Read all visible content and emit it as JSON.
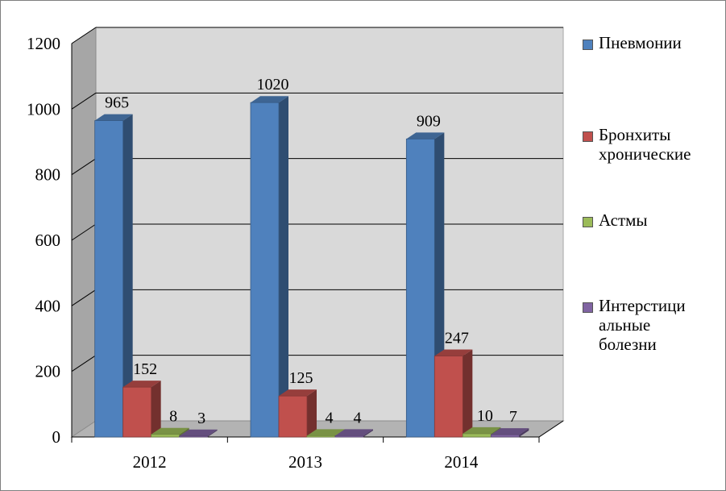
{
  "chart_data": {
    "type": "bar",
    "style": "3d-clustered-column",
    "categories": [
      "2012",
      "2013",
      "2014"
    ],
    "series": [
      {
        "name": "Пневмонии",
        "values": [
          965,
          1020,
          909
        ],
        "color": "#4f81bd"
      },
      {
        "name": "Бронхиты\nхронические",
        "values": [
          152,
          125,
          247
        ],
        "color": "#c0504d"
      },
      {
        "name": "Астмы",
        "values": [
          8,
          4,
          10
        ],
        "color": "#9bbb59"
      },
      {
        "name": "Интерстици\nальные\nболезни",
        "values": [
          3,
          4,
          7
        ],
        "color": "#8064a2"
      }
    ],
    "ylim": [
      0,
      1200
    ],
    "yticks": [
      "0",
      "200",
      "400",
      "600",
      "800",
      "1000",
      "1200"
    ],
    "grid": true,
    "legend": "right"
  }
}
